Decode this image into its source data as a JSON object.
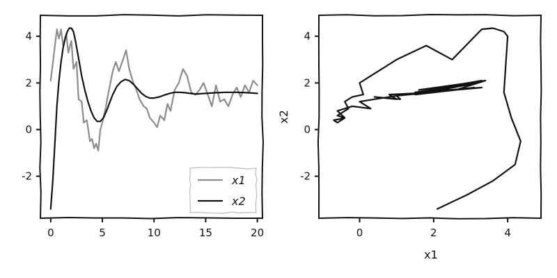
{
  "chart_data": [
    {
      "type": "line",
      "xlim": [
        -1,
        20.5
      ],
      "ylim": [
        -3.8,
        4.9
      ],
      "xticks": [
        0,
        5,
        10,
        15,
        20
      ],
      "yticks": [
        -2,
        0,
        2,
        4
      ],
      "xtick_labels": [
        "0",
        "5",
        "10",
        "15",
        "20"
      ],
      "ytick_labels": [
        "-2",
        "0",
        "2",
        "4"
      ],
      "xlabel": "",
      "ylabel": "",
      "grid": false,
      "legend": {
        "position": "lower-right",
        "entries": [
          "x1",
          "x2"
        ]
      },
      "series": [
        {
          "name": "x1",
          "color": "#8c8c8c",
          "x": [
            0,
            0.3,
            0.6,
            0.8,
            1.0,
            1.2,
            1.5,
            1.7,
            2.0,
            2.2,
            2.5,
            2.7,
            3.0,
            3.2,
            3.5,
            3.8,
            4.0,
            4.2,
            4.4,
            4.6,
            4.8,
            5.0,
            5.3,
            5.6,
            6.0,
            6.3,
            6.6,
            7.0,
            7.3,
            7.6,
            8.0,
            8.3,
            8.6,
            9.0,
            9.3,
            9.6,
            10.0,
            10.3,
            10.6,
            11.0,
            11.3,
            11.6,
            12.0,
            12.4,
            12.8,
            13.2,
            13.6,
            14.0,
            14.4,
            14.8,
            15.2,
            15.6,
            16.0,
            16.4,
            16.8,
            17.2,
            17.6,
            18.0,
            18.4,
            18.8,
            19.2,
            19.6,
            20.0
          ],
          "y": [
            2.1,
            3.2,
            4.3,
            3.9,
            4.3,
            3.6,
            4.1,
            3.3,
            3.8,
            2.6,
            2.9,
            1.3,
            1.2,
            0.3,
            0.4,
            -0.5,
            -0.4,
            -0.8,
            -0.6,
            -0.9,
            0.0,
            0.3,
            0.9,
            1.6,
            2.5,
            2.9,
            2.5,
            3.0,
            3.4,
            2.6,
            2.0,
            1.7,
            1.3,
            1.0,
            0.9,
            0.5,
            0.3,
            0.1,
            0.6,
            0.4,
            1.1,
            0.8,
            1.7,
            2.0,
            2.6,
            2.3,
            1.6,
            1.5,
            1.7,
            2.0,
            1.5,
            1.0,
            1.9,
            1.2,
            1.3,
            1.0,
            1.5,
            1.8,
            1.4,
            1.9,
            1.6,
            2.1,
            1.9
          ]
        },
        {
          "name": "x2",
          "color": "#111111",
          "x": [
            0,
            0.2,
            0.4,
            0.6,
            0.8,
            1.0,
            1.2,
            1.4,
            1.6,
            1.8,
            2.0,
            2.2,
            2.4,
            2.6,
            2.8,
            3.0,
            3.3,
            3.6,
            3.9,
            4.2,
            4.5,
            4.8,
            5.1,
            5.4,
            5.7,
            6.0,
            6.4,
            6.8,
            7.2,
            7.6,
            8.0,
            8.4,
            8.8,
            9.2,
            9.6,
            10.0,
            10.5,
            11.0,
            11.5,
            12.0,
            12.5,
            13.0,
            13.5,
            14.0,
            15.0,
            16.0,
            17.0,
            18.0,
            19.0,
            20.0
          ],
          "y": [
            -3.4,
            -2.2,
            -0.6,
            1.0,
            2.1,
            2.9,
            3.5,
            3.9,
            4.2,
            4.35,
            4.35,
            4.2,
            3.8,
            3.3,
            2.8,
            2.3,
            1.7,
            1.2,
            0.8,
            0.5,
            0.35,
            0.35,
            0.5,
            0.8,
            1.15,
            1.5,
            1.85,
            2.05,
            2.15,
            2.1,
            1.95,
            1.75,
            1.55,
            1.42,
            1.35,
            1.35,
            1.4,
            1.48,
            1.55,
            1.6,
            1.6,
            1.58,
            1.55,
            1.52,
            1.55,
            1.58,
            1.6,
            1.6,
            1.58,
            1.55
          ]
        }
      ]
    },
    {
      "type": "line",
      "xlim": [
        -1.1,
        4.9
      ],
      "ylim": [
        -3.8,
        4.9
      ],
      "xticks": [
        0,
        2,
        4
      ],
      "yticks": [
        -2,
        0,
        2,
        4
      ],
      "xtick_labels": [
        "0",
        "2",
        "4"
      ],
      "ytick_labels": [
        "-2",
        "0",
        "2",
        "4"
      ],
      "xlabel": "x1",
      "ylabel": "x2",
      "grid": false,
      "series": [
        {
          "color": "#111111",
          "x": [
            2.1,
            2.9,
            3.6,
            4.2,
            4.35,
            4.1,
            3.9,
            4.0,
            3.9,
            3.6,
            3.3,
            2.5,
            1.8,
            1.0,
            0.0,
            0.1,
            -0.2,
            -0.4,
            -0.3,
            -0.6,
            -0.4,
            -0.7,
            -0.6,
            -0.4,
            -0.6,
            -0.2,
            0.3,
            0.0,
            1.0,
            1.1,
            0.4,
            1.0,
            0.8,
            2.0,
            1.0,
            2.6,
            1.5,
            3.1,
            1.6,
            2.6,
            1.5,
            2.8,
            1.5,
            3.2,
            1.6,
            3.4,
            2.0,
            3.3,
            1.6,
            2.8,
            1.5,
            3.4,
            2.6,
            3.3,
            1.5
          ],
          "y": [
            -3.4,
            -2.8,
            -2.2,
            -1.5,
            -0.5,
            0.5,
            1.6,
            4.0,
            4.2,
            4.35,
            4.3,
            3.0,
            3.6,
            3.0,
            2.0,
            1.5,
            1.4,
            1.2,
            0.9,
            0.6,
            0.5,
            0.4,
            0.3,
            0.5,
            0.8,
            1.0,
            0.9,
            1.2,
            1.45,
            1.3,
            1.4,
            1.3,
            1.5,
            1.6,
            1.45,
            1.7,
            1.5,
            1.8,
            1.55,
            1.7,
            1.6,
            1.9,
            1.5,
            2.0,
            1.7,
            2.1,
            1.75,
            2.1,
            1.6,
            1.9,
            1.55,
            2.1,
            1.7,
            1.8,
            1.6
          ]
        }
      ]
    }
  ]
}
